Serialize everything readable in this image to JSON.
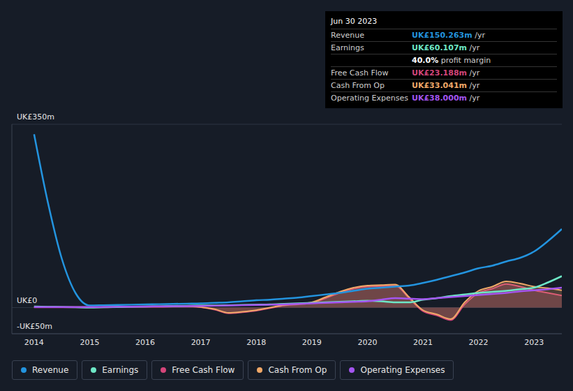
{
  "chart_data": {
    "type": "line",
    "x": [
      2014,
      2014.25,
      2014.5,
      2014.75,
      2015,
      2015.25,
      2015.5,
      2015.75,
      2016,
      2016.25,
      2016.5,
      2016.75,
      2017,
      2017.25,
      2017.5,
      2017.75,
      2018,
      2018.25,
      2018.5,
      2018.75,
      2019,
      2019.25,
      2019.5,
      2019.75,
      2020,
      2020.25,
      2020.5,
      2020.75,
      2021,
      2021.25,
      2021.5,
      2021.75,
      2022,
      2022.25,
      2022.5,
      2022.75,
      2023,
      2023.25,
      2023.5
    ],
    "xlim": [
      2013.6,
      2023.5
    ],
    "xticks": [
      2014,
      2015,
      2016,
      2017,
      2018,
      2019,
      2020,
      2021,
      2022,
      2023
    ],
    "ylim": [
      -50,
      350
    ],
    "yticks": [
      {
        "value": -50,
        "label": "-UK£50m"
      },
      {
        "value": 0,
        "label": "UK£0"
      },
      {
        "value": 350,
        "label": "UK£350m"
      }
    ],
    "grid": true,
    "legend": "bottom",
    "series": [
      {
        "name": "Revenue",
        "color": "#2394df",
        "type": "line",
        "values": [
          331,
          200,
          93,
          27,
          4,
          4.5,
          5,
          5.5,
          6,
          6.5,
          7,
          7.5,
          8,
          9,
          10,
          12,
          14,
          15,
          17,
          19,
          22,
          25,
          28,
          32,
          36,
          38,
          40,
          42,
          47,
          53,
          60,
          67,
          75,
          80,
          88,
          95,
          107,
          127,
          150
        ]
      },
      {
        "name": "Earnings",
        "color": "#6ee7c6",
        "type": "line",
        "values": [
          2,
          1.5,
          1,
          0.5,
          0,
          0.5,
          1,
          1.5,
          2,
          2.5,
          3,
          3.5,
          4,
          4,
          4.5,
          5,
          5.5,
          6,
          7,
          8,
          9,
          10,
          11,
          12,
          13,
          12,
          10,
          10,
          15,
          18,
          22,
          25,
          28,
          30,
          32,
          35,
          38,
          48,
          60
        ]
      },
      {
        "name": "Free Cash Flow",
        "color": "#d4457a",
        "type": "area",
        "values": [
          0.5,
          0.5,
          0.5,
          0.5,
          0.5,
          0.5,
          1,
          1.5,
          1.5,
          1.5,
          2,
          2.5,
          0.5,
          -4,
          -11,
          -9,
          -6,
          -1,
          4,
          6,
          9,
          18,
          28,
          36,
          40,
          41,
          42,
          18,
          -7,
          -15,
          -24,
          6,
          28,
          36,
          45,
          40,
          33,
          28,
          23
        ]
      },
      {
        "name": "Cash From Op",
        "color": "#f0a868",
        "type": "area",
        "values": [
          1,
          1,
          1,
          1,
          1,
          1,
          1.5,
          2,
          2,
          2,
          2.5,
          3,
          1,
          -3,
          -10,
          -8,
          -5,
          0,
          5,
          7,
          10,
          20,
          30,
          38,
          42,
          43,
          44,
          20,
          -5,
          -13,
          -22,
          10,
          32,
          40,
          50,
          46,
          40,
          37,
          33
        ]
      },
      {
        "name": "Operating Expenses",
        "color": "#a455f0",
        "type": "line",
        "values": [
          1,
          1,
          1,
          1,
          1,
          1.2,
          1.5,
          1.8,
          2,
          2.3,
          2.6,
          2.8,
          3,
          3.5,
          4,
          4.5,
          5,
          5.5,
          6,
          7,
          8,
          9,
          10,
          11,
          12,
          15,
          18,
          17,
          16,
          18,
          20,
          22,
          24,
          26,
          28,
          31,
          33,
          35,
          38
        ]
      }
    ],
    "annotation": {
      "title": "Jun 30 2023",
      "rows": [
        {
          "name": "Revenue",
          "value": "UK£150.263m",
          "unit": "/yr"
        },
        {
          "name": "Earnings",
          "value": "UK£60.107m",
          "unit": "/yr"
        },
        {
          "value": "40.0%",
          "label": "profit margin"
        },
        {
          "name": "Free Cash Flow",
          "value": "UK£23.188m",
          "unit": "/yr"
        },
        {
          "name": "Cash From Op",
          "value": "UK£33.041m",
          "unit": "/yr"
        },
        {
          "name": "Operating Expenses",
          "value": "UK£38.000m",
          "unit": "/yr"
        }
      ]
    }
  }
}
